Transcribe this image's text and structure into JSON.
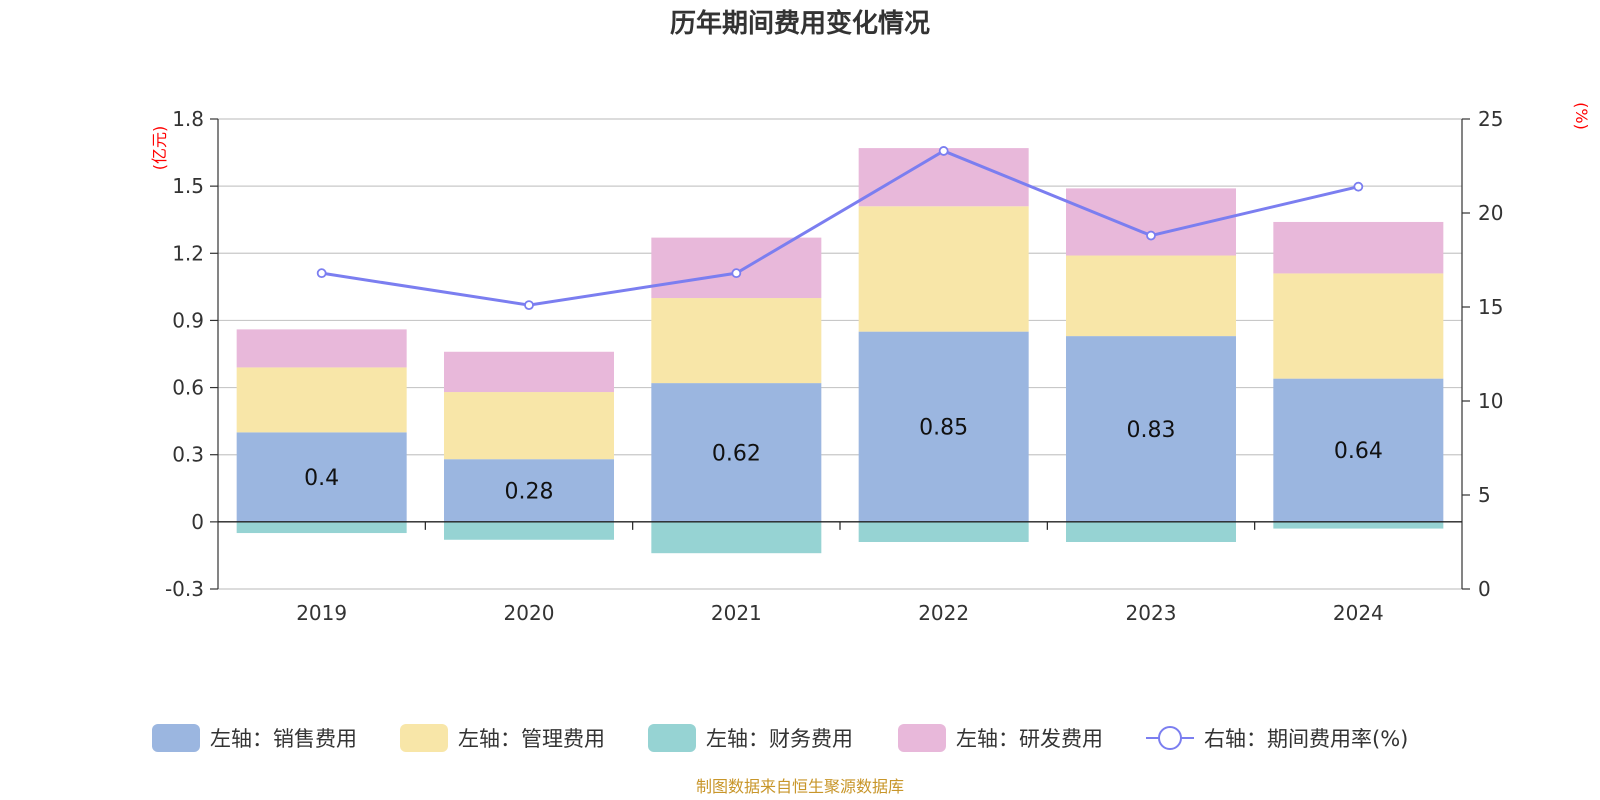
{
  "chart_data": {
    "type": "bar",
    "title": "历年期间费用变化情况",
    "categories": [
      "2019",
      "2020",
      "2021",
      "2022",
      "2023",
      "2024"
    ],
    "left_axis": {
      "unit_label": "(亿元)",
      "ylim": [
        -0.3,
        1.8
      ],
      "ticks": [
        -0.3,
        0,
        0.3,
        0.6,
        0.9,
        1.2,
        1.5,
        1.8
      ],
      "tick_labels": [
        "-0.3",
        "0",
        "0.3",
        "0.6",
        "0.9",
        "1.2",
        "1.5",
        "1.8"
      ]
    },
    "right_axis": {
      "unit_label": "(%)",
      "ylim": [
        0,
        25
      ],
      "ticks": [
        0,
        5,
        10,
        15,
        20,
        25
      ],
      "tick_labels": [
        "0",
        "5",
        "10",
        "15",
        "20",
        "25"
      ]
    },
    "series": [
      {
        "name": "左轴：销售费用",
        "axis": "left",
        "kind": "bar",
        "color": "#9bb6e0",
        "values": [
          0.4,
          0.28,
          0.62,
          0.85,
          0.83,
          0.64
        ],
        "labels": [
          "0.4",
          "0.28",
          "0.62",
          "0.85",
          "0.83",
          "0.64"
        ]
      },
      {
        "name": "左轴：管理费用",
        "axis": "left",
        "kind": "bar",
        "color": "#f8e6a8",
        "values": [
          0.29,
          0.3,
          0.38,
          0.56,
          0.36,
          0.47
        ]
      },
      {
        "name": "左轴：财务费用",
        "axis": "left",
        "kind": "bar",
        "color": "#96d3d3",
        "values": [
          -0.05,
          -0.08,
          -0.14,
          -0.09,
          -0.09,
          -0.03
        ]
      },
      {
        "name": "左轴：研发费用",
        "axis": "left",
        "kind": "bar",
        "color": "#e8b8da",
        "values": [
          0.17,
          0.18,
          0.27,
          0.26,
          0.3,
          0.23
        ]
      },
      {
        "name": "右轴：期间费用率(%)",
        "axis": "right",
        "kind": "line",
        "color": "#7b7ef0",
        "values": [
          16.8,
          15.1,
          16.8,
          23.3,
          18.8,
          21.4
        ]
      }
    ],
    "legend_position": "bottom",
    "grid": true
  },
  "source_note": "制图数据来自恒生聚源数据库"
}
